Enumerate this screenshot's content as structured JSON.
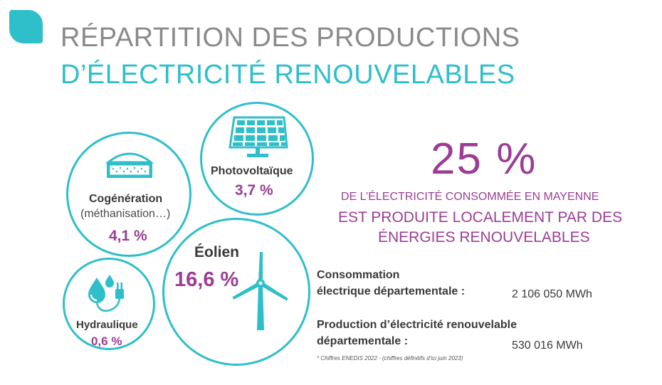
{
  "header": {
    "title_line1": "RÉPARTITION DES PRODUCTIONS",
    "title_line2": "D’ÉLECTRICITÉ RENOUVELABLES"
  },
  "sources": {
    "photovoltaique": {
      "label": "Photovoltaïque",
      "value": "3,7 %",
      "icon": "solar-panel-icon"
    },
    "cogeneration": {
      "label": "Cogénération",
      "sublabel": "(méthanisation…)",
      "value": "4,1 %",
      "icon": "biogas-dome-icon"
    },
    "eolien": {
      "label": "Éolien",
      "value": "16,6 %",
      "icon": "wind-turbine-icon"
    },
    "hydraulique": {
      "label": "Hydraulique",
      "value": "0,6 %",
      "icon": "water-drop-plug-icon"
    }
  },
  "highlight": {
    "percent": "25 %",
    "line1": "DE L’ÉLECTRICITÉ CONSOMMÉE EN MAYENNE",
    "line2": "EST PRODUITE LOCALEMENT PAR DES",
    "line3": "ÉNERGIES RENOUVELABLES"
  },
  "stats": {
    "consumption_label_1": "Consommation",
    "consumption_label_2": "électrique départementale :",
    "consumption_value": "2 106 050 MWh",
    "production_label_1": "Production d’électricité renouvelable",
    "production_label_2": "départementale :",
    "production_value": "530 016 MWh"
  },
  "footnote": "* Chiffres ENEDIS 2022 - (chiffres définitifs d’ici juin 2023)",
  "colors": {
    "teal": "#2ebfca",
    "purple": "#9b3d94",
    "grey": "#8a8a8a"
  }
}
